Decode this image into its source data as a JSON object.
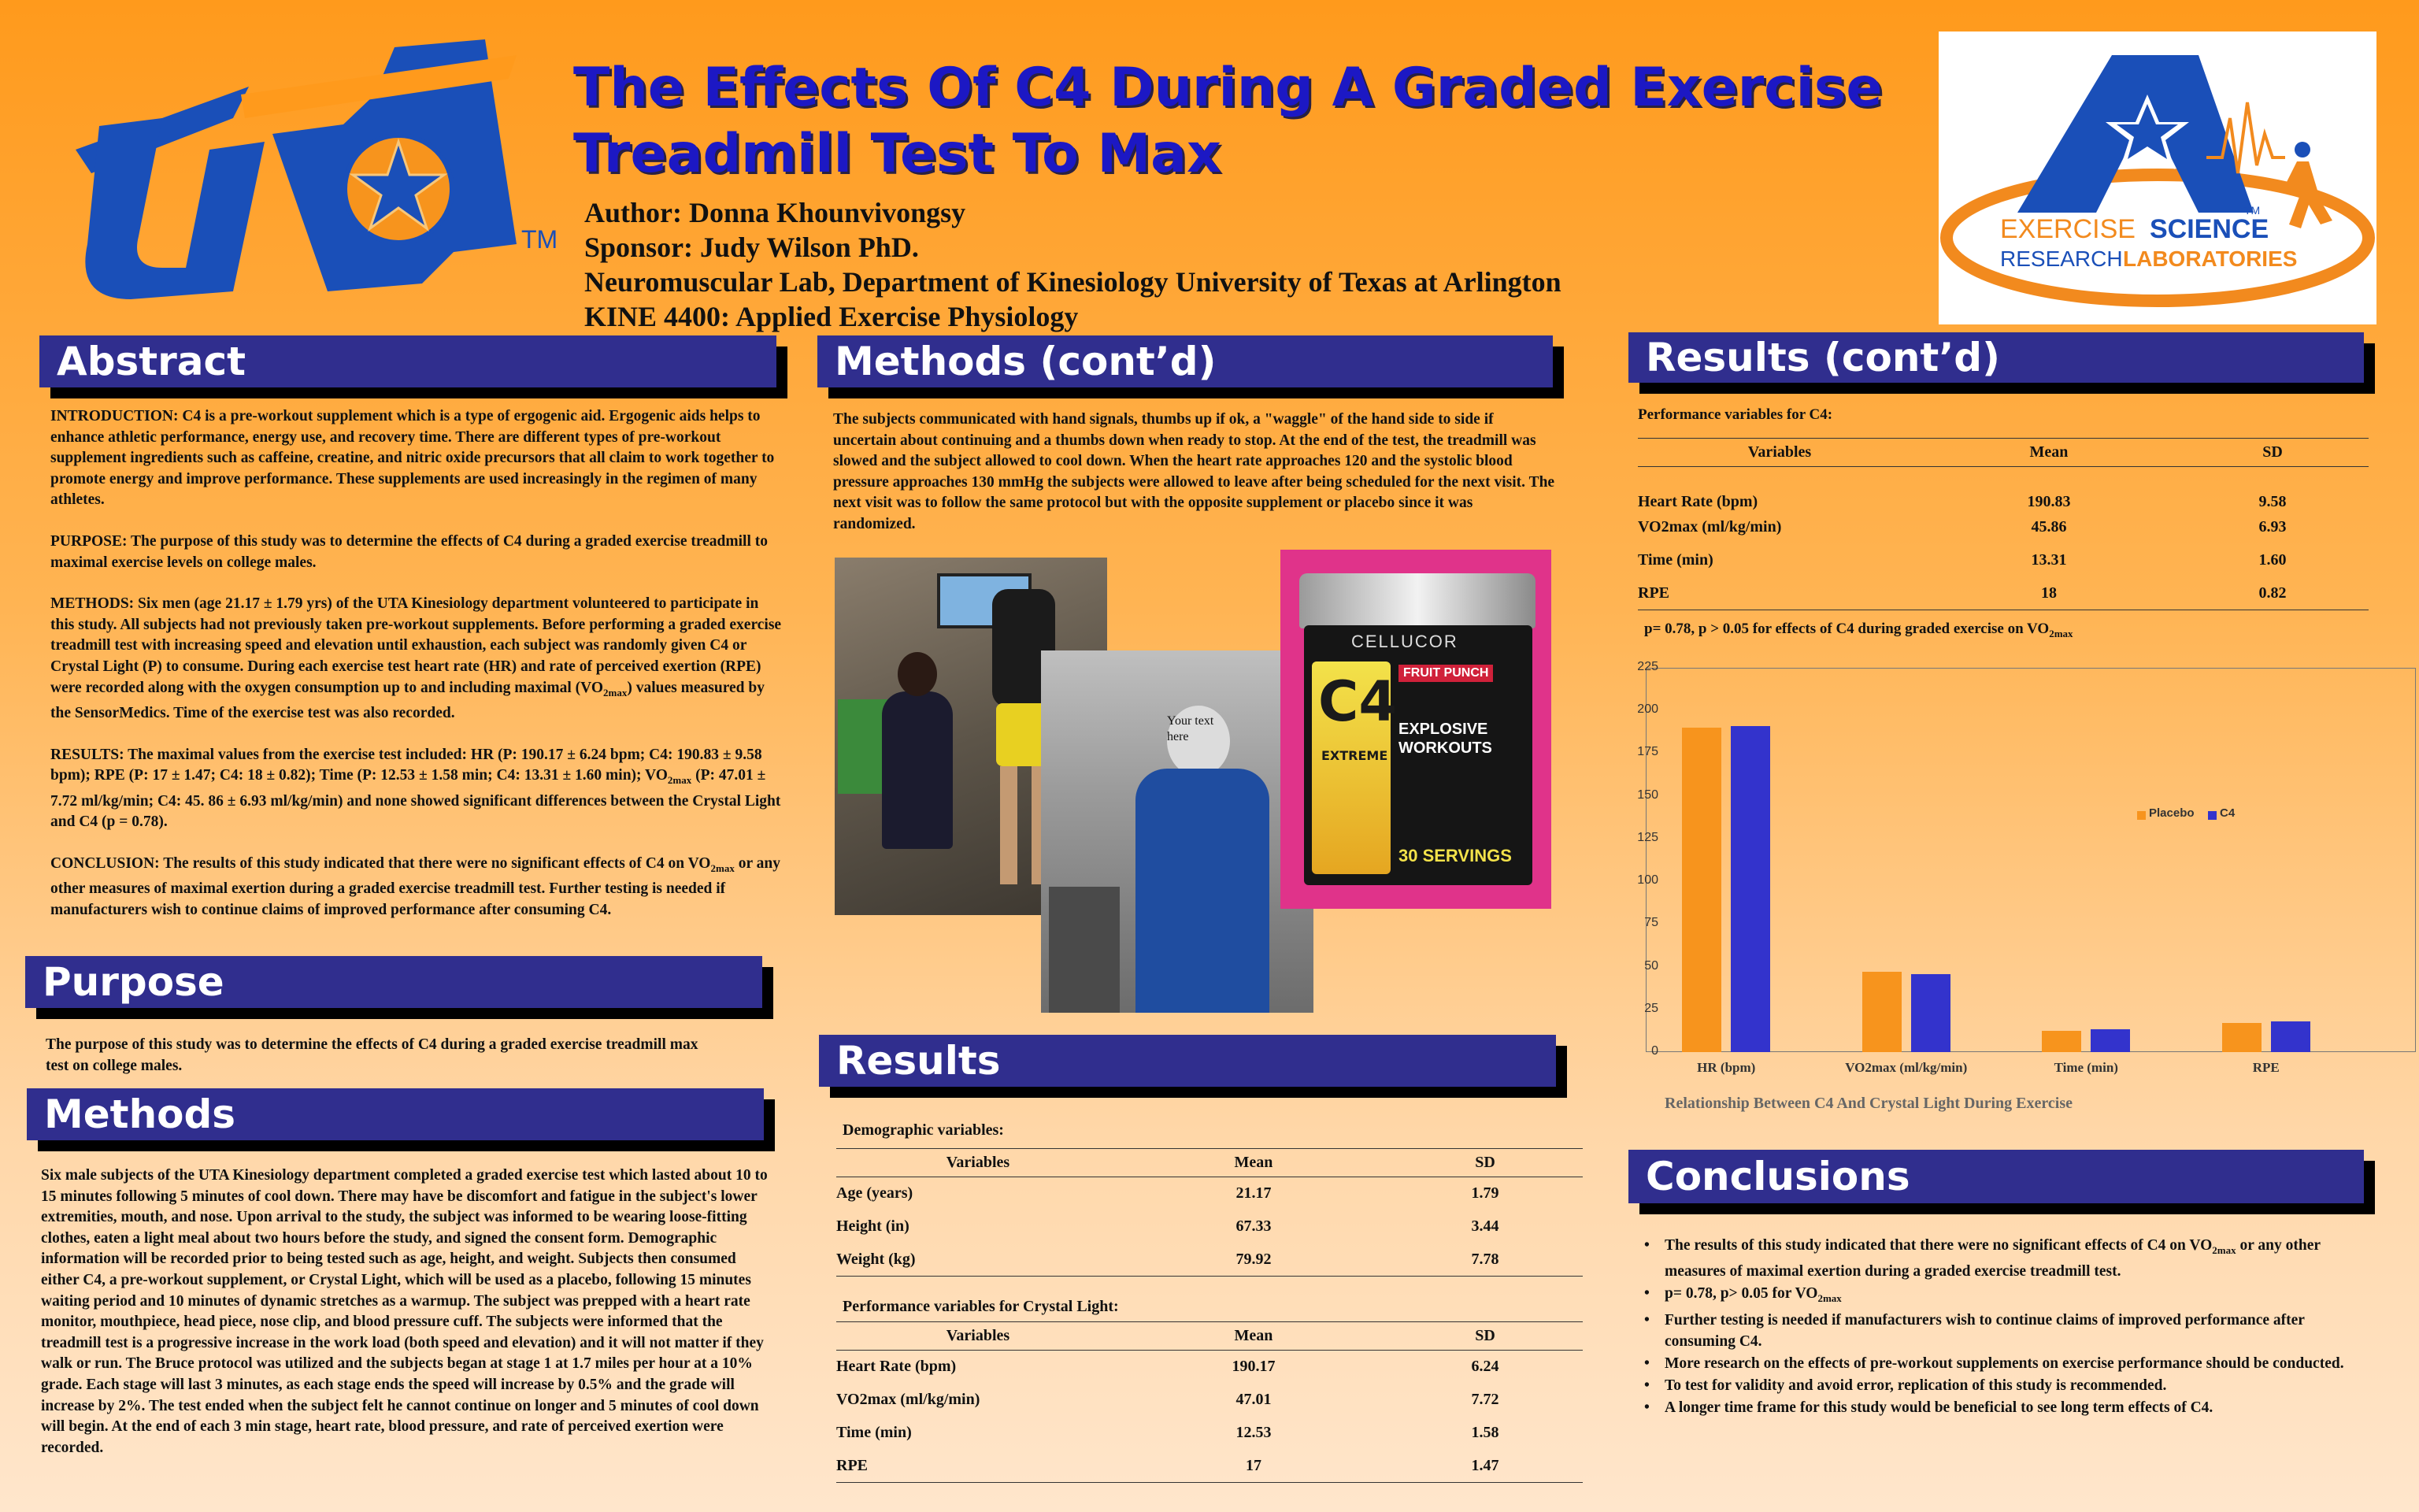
{
  "header": {
    "title_line1": "The Effects Of C4 During A Graded Exercise",
    "title_line2": "Treadmill Test To Max",
    "author": "Author: Donna Khounvivongsy",
    "sponsor": "Sponsor: Judy Wilson PhD.",
    "lab": "Neuromuscular Lab, Department of Kinesiology University of Texas at Arlington",
    "course": "KINE 4400: Applied Exercise Physiology"
  },
  "logos": {
    "uta_text": "UTA",
    "uta_tm": "TM",
    "esrl_tm": "TM",
    "esrl_line1_a": "EXERCISE",
    "esrl_line1_b": "SCIENCE",
    "esrl_line2_a": "RESEARCH",
    "esrl_line2_b": "LABORATORIES",
    "brand_blue": "#1a4fb8",
    "brand_orange": "#f28a1e"
  },
  "abstract": {
    "heading": "Abstract",
    "intro": "INTRODUCTION: C4 is a pre-workout supplement which is a type of ergogenic aid.  Ergogenic aids helps to enhance athletic performance, energy use, and recovery time. There are different types of pre-workout supplement ingredients such as caffeine, creatine, and nitric oxide precursors that all claim to work together to promote energy and improve performance.  These supplements are used increasingly in the regimen of many athletes.",
    "purpose": "PURPOSE:  The purpose of this study was to determine the effects of C4 during a graded exercise treadmill to maximal exercise levels on college males.",
    "methods_a": "METHODS:  Six men (age 21.17 ± 1.79 yrs) of the UTA Kinesiology department volunteered to participate in this study.  All subjects had not previously taken pre-workout supplements.  Before performing a graded exercise treadmill test with increasing speed and elevation until exhaustion, each subject was randomly given C4 or Crystal Light (P) to consume.  During each exercise test heart rate (HR) and rate of perceived exertion (RPE) were recorded along with the oxygen consumption up to and including maximal (VO",
    "methods_sub": "2max",
    "methods_b": ") values measured by the SensorMedics. Time of the exercise test was also recorded.",
    "results_a": "RESULTS:  The maximal values from the exercise test included: HR (P: 190.17 ± 6.24 bpm; C4: 190.83 ± 9.58 bpm); RPE (P: 17 ± 1.47; C4: 18 ± 0.82); Time (P: 12.53 ± 1.58 min; C4: 13.31 ± 1.60 min); VO",
    "results_sub": "2max",
    "results_b": " (P: 47.01 ± 7.72 ml/kg/min; C4: 45. 86 ± 6.93 ml/kg/min) and none  showed significant differences between the Crystal Light and C4 (p = 0.78).",
    "conclusion_a": "CONCLUSION: The results of this study indicated that there were no significant effects of C4 on VO",
    "conclusion_sub": "2max",
    "conclusion_b": " or any other measures of maximal exertion during a graded exercise treadmill test. Further testing is needed if manufacturers wish to continue claims of improved performance after consuming C4."
  },
  "purpose": {
    "heading": "Purpose",
    "text": "The purpose of this study was to determine the effects of C4 during a graded exercise treadmill max test on college males."
  },
  "methods": {
    "heading": "Methods",
    "text": "Six male subjects of the UTA Kinesiology department completed a graded exercise test which lasted about 10 to 15 minutes following 5 minutes of cool down.  There may have be discomfort and fatigue in the subject's lower extremities, mouth, and nose. Upon arrival to the study, the subject was informed to be wearing loose-fitting clothes, eaten a light meal about two hours before the study, and signed the consent form. Demographic information will be recorded prior to being tested such as age, height, and weight. Subjects then consumed either C4, a pre-workout supplement, or Crystal Light, which will be used as a placebo, following 15 minutes waiting period and 10 minutes of dynamic stretches as a warmup. The subject was prepped with a heart rate monitor, mouthpiece, head piece, nose clip, and blood pressure cuff. The subjects were informed that the treadmill test is a progressive increase in the work load (both speed and elevation) and it will not matter if they walk or run. The Bruce protocol was utilized and the subjects began at stage 1 at 1.7 miles per hour at a 10% grade. Each stage will last 3 minutes, as each stage ends the speed will increase by 0.5% and the grade will increase by 2%. The test ended when the subject felt he cannot continue on longer and 5 minutes of cool down will begin. At the end of each 3 min stage, heart rate, blood pressure, and rate of perceived exertion were recorded."
  },
  "methods_contd": {
    "heading": "Methods (cont’d)",
    "text": "The subjects communicated with hand signals, thumbs up if ok, a \"waggle\" of the hand side to side if uncertain about continuing and a thumbs down when ready to stop. At the end of the test, the treadmill was slowed and the subject allowed to cool down. When the heart rate approaches 120 and the systolic blood pressure approaches 130 mmHg the subjects were allowed to leave after being scheduled for the next visit. The next visit was to follow the same protocol but with the opposite supplement or placebo since it was randomized.",
    "photo_placeholder": "Your text here",
    "product_brand": "CELLUCOR",
    "product_flavor": "FRUIT PUNCH",
    "product_name": "C4",
    "product_sub": "EXTREME",
    "product_tag": "EXPLOSIVE WORKOUTS",
    "product_servings": "30 SERVINGS"
  },
  "results": {
    "heading": "Results",
    "demo_caption": "Demographic variables:",
    "columns": [
      "Variables",
      "Mean",
      "SD"
    ],
    "demo_rows": [
      {
        "variable": "Age (years)",
        "mean": "21.17",
        "sd": "1.79"
      },
      {
        "variable": "Height (in)",
        "mean": "67.33",
        "sd": "3.44"
      },
      {
        "variable": "Weight (kg)",
        "mean": "79.92",
        "sd": "7.78"
      }
    ],
    "cl_caption": "Performance variables for Crystal Light:",
    "cl_rows": [
      {
        "variable": "Heart Rate (bpm)",
        "mean": "190.17",
        "sd": "6.24"
      },
      {
        "variable": "VO2max (ml/kg/min)",
        "mean": "47.01",
        "sd": "7.72"
      },
      {
        "variable": "Time (min)",
        "mean": "12.53",
        "sd": "1.58"
      },
      {
        "variable": "RPE",
        "mean": "17",
        "sd": "1.47"
      }
    ]
  },
  "results_contd": {
    "heading": "Results (cont’d)",
    "c4_caption": "Performance variables for C4:",
    "c4_rows": [
      {
        "variable": "Heart Rate (bpm)",
        "mean": "190.83",
        "sd": "9.58"
      },
      {
        "variable": "VO2max (ml/kg/min)",
        "mean": "45.86",
        "sd": "6.93"
      },
      {
        "variable": "Time (min)",
        "mean": "13.31",
        "sd": "1.60"
      },
      {
        "variable": "RPE",
        "mean": "18",
        "sd": "0.82"
      }
    ],
    "pvalue_a": "p= 0.78, p > 0.05 for effects of C4 during graded exercise on VO",
    "pvalue_sub": "2max",
    "chart_caption": "Relationship Between C4 And Crystal Light During Exercise"
  },
  "chart_data": {
    "type": "bar",
    "categories": [
      "HR (bpm)",
      "VO2max (ml/kg/min)",
      "Time (min)",
      "RPE"
    ],
    "series": [
      {
        "name": "Placebo",
        "values": [
          190.17,
          47.01,
          12.53,
          17
        ],
        "color": "#f7941d"
      },
      {
        "name": "C4",
        "values": [
          190.83,
          45.86,
          13.31,
          18
        ],
        "color": "#3333cc"
      }
    ],
    "yticks": [
      "0",
      "25",
      "50",
      "75",
      "100",
      "125",
      "150",
      "175",
      "200",
      "225"
    ],
    "ylim": [
      0,
      225
    ],
    "grid": false,
    "legend": "center-right"
  },
  "conclusions": {
    "heading": "Conclusions",
    "b1_a": "The results of this study indicated that there were no significant effects of C4 on VO",
    "b1_sub": "2max",
    "b1_b": " or any other measures of maximal exertion during a graded exercise treadmill test.",
    "b2_a": "p= 0.78, p> 0.05 for VO",
    "b2_sub": "2max",
    "b3": "Further testing is needed if manufacturers wish to continue claims of improved performance after consuming C4.",
    "b4": "More research on the effects of pre-workout supplements on exercise performance should be conducted.",
    "b5": "To test for validity and avoid error, replication of this study is recommended.",
    "b6": "A longer time frame for this study would be beneficial to see long term effects of C4."
  }
}
